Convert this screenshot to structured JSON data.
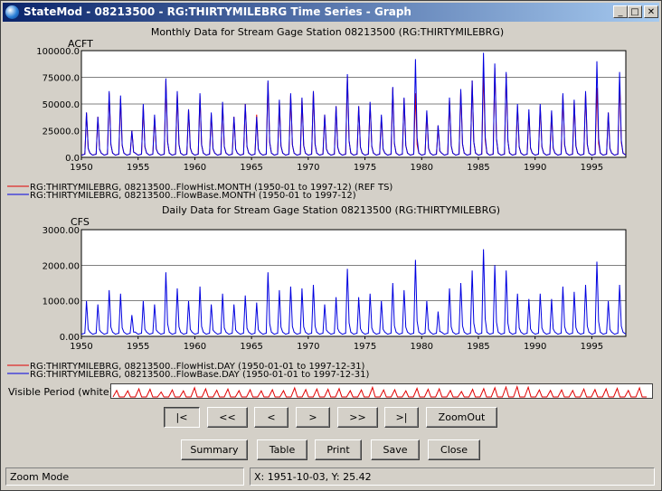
{
  "window": {
    "title": "StateMod - 08213500 - RG:THIRTYMILEBRG Time Series - Graph",
    "buttons": {
      "minimize": "_",
      "maximize": "□",
      "close": "✕"
    }
  },
  "chart_data": [
    {
      "type": "line",
      "title": "Monthly Data for Stream Gage Station 08213500 (RG:THIRTYMILEBRG)",
      "ylabel": "ACFT",
      "ylim": [
        0,
        100000
      ],
      "yticks": [
        "0.0",
        "25000.0",
        "50000.0",
        "75000.0",
        "100000.0"
      ],
      "xlim": [
        1950,
        1998
      ],
      "xticks": [
        "1950",
        "1955",
        "1960",
        "1965",
        "1970",
        "1975",
        "1980",
        "1985",
        "1990",
        "1995"
      ],
      "grid": true,
      "legend_position": "bottom-left",
      "series": [
        {
          "name": "RG:THIRTYMILEBRG, 08213500..FlowHist.MONTH (1950-01 to 1997-12) (REF TS)",
          "color": "#e00000",
          "annual_peaks": [
            42000,
            38000,
            60000,
            55000,
            25000,
            48000,
            38000,
            72000,
            60000,
            45000,
            58000,
            40000,
            50000,
            38000,
            50000,
            40000,
            70000,
            52000,
            58000,
            55000,
            62000,
            40000,
            48000,
            76000,
            48000,
            50000,
            38000,
            65000,
            55000,
            60000,
            42000,
            30000,
            54000,
            62000,
            72000,
            80000,
            84000,
            78000,
            48000,
            42000,
            48000,
            42000,
            58000,
            52000,
            60000,
            65000,
            42000,
            70000
          ]
        },
        {
          "name": "RG:THIRTYMILEBRG, 08213500..FlowBase.MONTH (1950-01 to 1997-12)",
          "color": "#0000e0",
          "annual_peaks": [
            42000,
            38000,
            62000,
            58000,
            25000,
            50000,
            40000,
            74000,
            62000,
            45000,
            60000,
            42000,
            52000,
            38000,
            50000,
            38000,
            72000,
            54000,
            60000,
            56000,
            62000,
            40000,
            48000,
            78000,
            48000,
            52000,
            40000,
            66000,
            56000,
            92000,
            44000,
            30000,
            56000,
            64000,
            72000,
            98000,
            88000,
            80000,
            50000,
            45000,
            50000,
            44000,
            60000,
            54000,
            62000,
            90000,
            42000,
            80000
          ]
        }
      ]
    },
    {
      "type": "line",
      "title": "Daily Data for Stream Gage Station 08213500 (RG:THIRTYMILEBRG)",
      "ylabel": "CFS",
      "ylim": [
        0,
        3000
      ],
      "yticks": [
        "0.00",
        "1000.00",
        "2000.00",
        "3000.00"
      ],
      "xlim": [
        1950,
        1998
      ],
      "xticks": [
        "1950",
        "1955",
        "1960",
        "1965",
        "1970",
        "1975",
        "1980",
        "1985",
        "1990",
        "1995"
      ],
      "grid": true,
      "legend_position": "bottom-left",
      "series": [
        {
          "name": "RG:THIRTYMILEBRG, 08213500..FlowHist.DAY (1950-01-01 to 1997-12-31)",
          "color": "#e00000",
          "annual_peaks": []
        },
        {
          "name": "RG:THIRTYMILEBRG, 08213500..FlowBase.DAY (1950-01-01 to 1997-12-31)",
          "color": "#0000e0",
          "annual_peaks": [
            1000,
            900,
            1300,
            1200,
            600,
            1000,
            900,
            1800,
            1350,
            1000,
            1400,
            900,
            1200,
            900,
            1150,
            950,
            1800,
            1300,
            1400,
            1350,
            1450,
            900,
            1100,
            1900,
            1100,
            1200,
            1000,
            1500,
            1300,
            2150,
            1000,
            700,
            1350,
            1500,
            1850,
            2450,
            2000,
            1850,
            1200,
            1050,
            1200,
            1050,
            1400,
            1250,
            1450,
            2100,
            1000,
            1450
          ]
        }
      ]
    }
  ],
  "visible_period": {
    "label": "Visible Period (white):"
  },
  "nav_buttons": {
    "first": "|<",
    "prev_page": "<<",
    "prev": "<",
    "next": ">",
    "next_page": ">>",
    "last": ">|",
    "zoom_out": "ZoomOut"
  },
  "action_buttons": {
    "summary": "Summary",
    "table": "Table",
    "print": "Print",
    "save": "Save",
    "close": "Close"
  },
  "status": {
    "mode": "Zoom Mode",
    "coords": "X:  1951-10-03,  Y:  25.42"
  }
}
